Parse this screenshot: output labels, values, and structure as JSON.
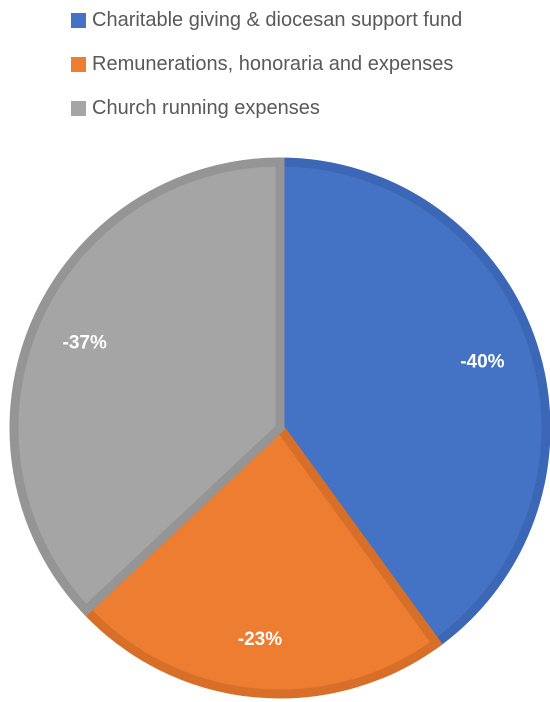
{
  "chart_data": {
    "type": "pie",
    "title": "",
    "legend_position": "top",
    "categories": [
      "Charitable giving & diocesan support fund",
      "Remunerations, honoraria and expenses",
      "Church running expenses"
    ],
    "values": [
      40,
      23,
      37
    ],
    "data_labels": [
      "-40%",
      "-23%",
      "-37%"
    ],
    "colors": [
      "#4472c4",
      "#ed7d31",
      "#a5a5a5"
    ]
  }
}
